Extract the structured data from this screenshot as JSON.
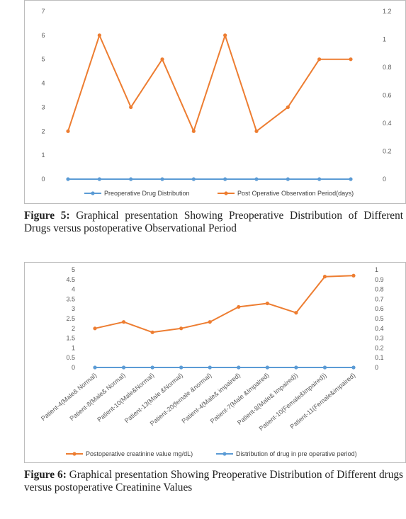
{
  "figures": [
    {
      "caption_label": "Figure 5:",
      "caption_text": "Graphical presentation Showing Preoperative Distribution of Different Drugs versus postoperative Observational Period"
    },
    {
      "caption_label": "Figure 6:",
      "caption_text": "Graphical presentation Showing Preoperative Distribution of Different drugs versus postoperative Creatinine Values"
    }
  ],
  "chart_data": [
    {
      "type": "line",
      "title": "",
      "categories": [
        "",
        "",
        "",
        "",
        "",
        "",
        "",
        "",
        "",
        ""
      ],
      "left_axis": {
        "ticks": [
          "0",
          "1",
          "2",
          "3",
          "4",
          "5",
          "6",
          "7"
        ],
        "range": [
          0,
          7
        ]
      },
      "right_axis": {
        "ticks": [
          "0",
          "0.2",
          "0.4",
          "0.6",
          "0.8",
          "1",
          "1.2"
        ],
        "range": [
          0,
          1.2
        ]
      },
      "series": [
        {
          "name": "Preoperative Drug Distribution",
          "axis": "right",
          "color": "#5B9BD5",
          "values": [
            0,
            0,
            0,
            0,
            0,
            0,
            0,
            0,
            0,
            0
          ]
        },
        {
          "name": "Post Operative Observation Period(days)",
          "axis": "left",
          "color": "#ED7D31",
          "values": [
            2,
            6,
            3,
            5,
            2,
            6,
            2,
            3,
            5,
            5
          ]
        }
      ],
      "legend_position": "bottom",
      "grid": false
    },
    {
      "type": "line",
      "title": "",
      "categories": [
        "Patient-4(Male& Normal)",
        "Patient-8(Male& Normal)",
        "Patient-10(Male&Normal)",
        "Patient-13(Male &Normal)",
        "Patient-20(female &normal)",
        "Patient-4(Male& impaired)",
        "Patient-7(Male &Impaired)",
        "Patient-8(Male& Impaired))",
        "Patient-10(Female&Impaired))",
        "Patient-11(Female&impaired)"
      ],
      "left_axis": {
        "ticks": [
          "0",
          "0.5",
          "1",
          "1.5",
          "2",
          "2.5",
          "3",
          "3.5",
          "4",
          "4.5",
          "5"
        ],
        "range": [
          0,
          5
        ]
      },
      "right_axis": {
        "ticks": [
          "0",
          "0.1",
          "0.2",
          "0.3",
          "0.4",
          "0.5",
          "0.6",
          "0.7",
          "0.8",
          "0.9",
          "1"
        ],
        "range": [
          0,
          1
        ]
      },
      "series": [
        {
          "name": "Postoperative creatinine value mg/dL)",
          "axis": "left",
          "color": "#ED7D31",
          "values": [
            2.0,
            2.33,
            1.8,
            2.0,
            2.33,
            3.1,
            3.28,
            2.8,
            4.65,
            4.7
          ]
        },
        {
          "name": "Distribution of drug in pre operative period)",
          "axis": "right",
          "color": "#5B9BD5",
          "values": [
            0,
            0,
            0,
            0,
            0,
            0,
            0,
            0,
            0,
            0
          ]
        }
      ],
      "legend_position": "bottom",
      "grid": false
    }
  ]
}
